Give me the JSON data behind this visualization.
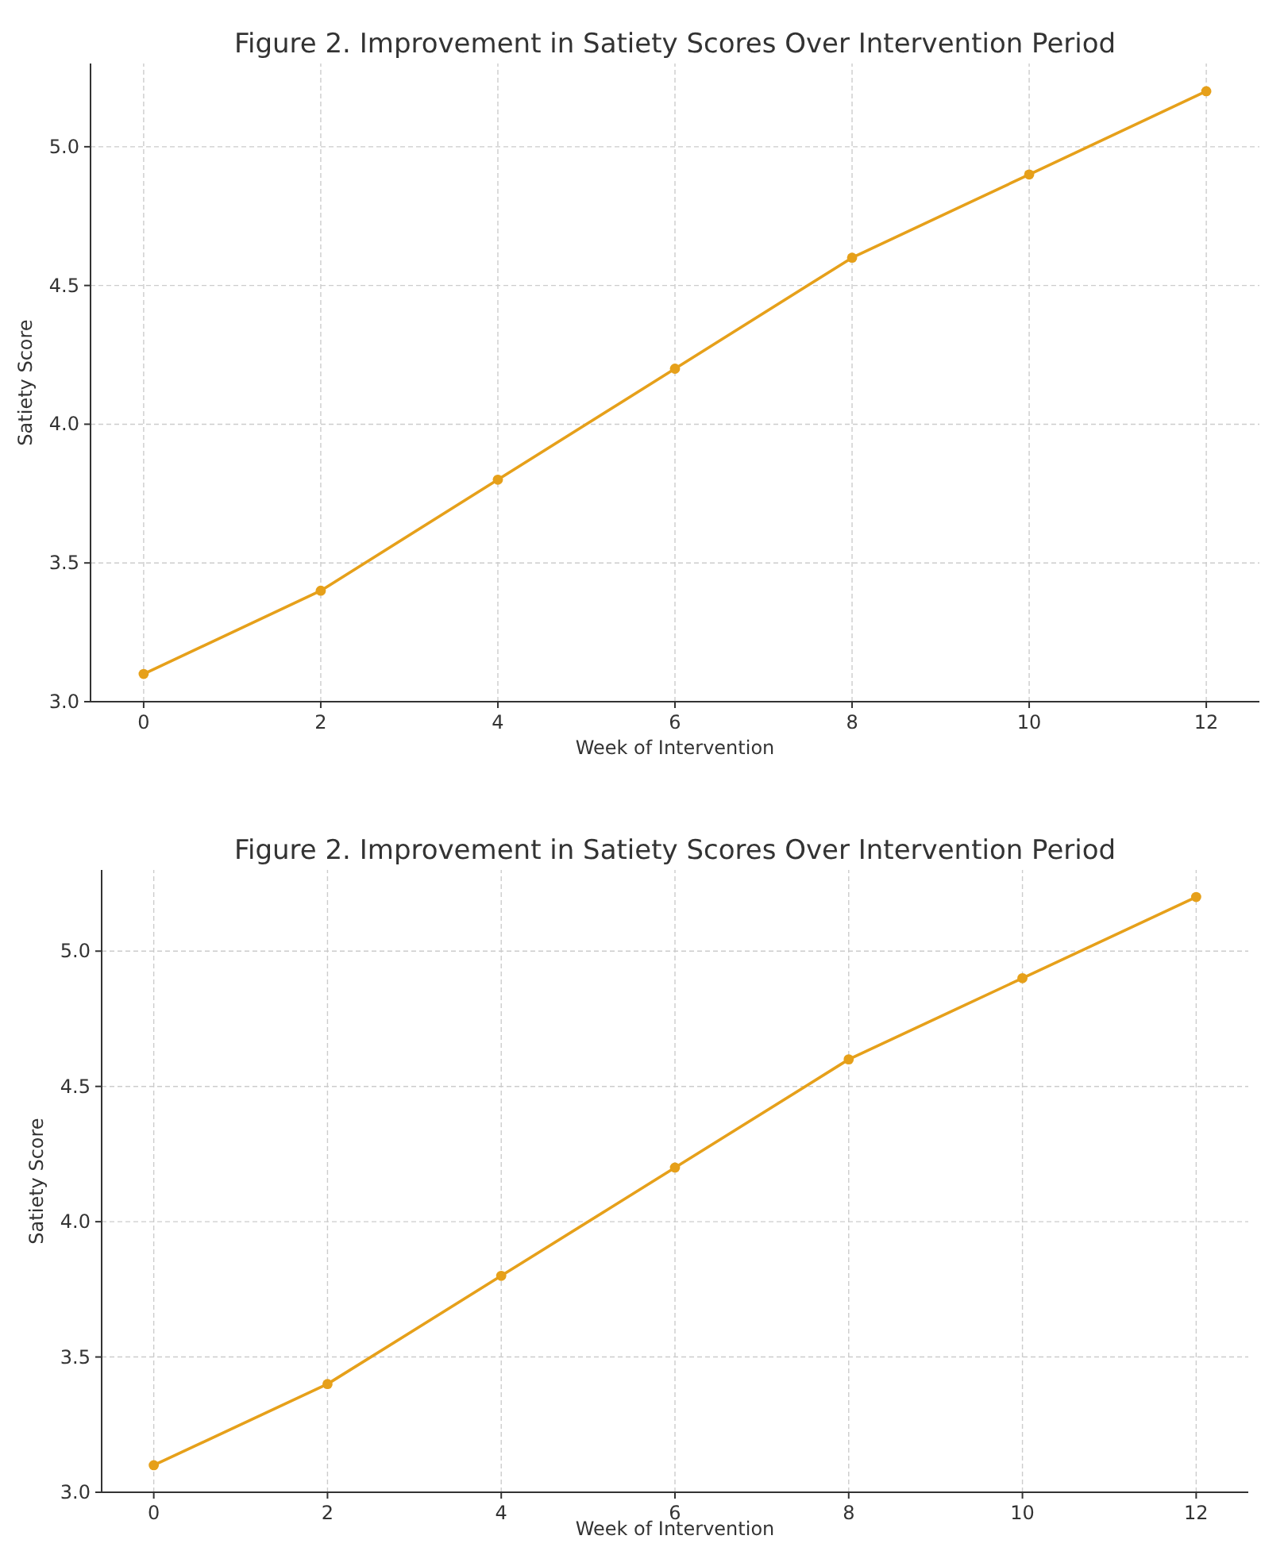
{
  "chart_data": [
    {
      "type": "line",
      "title": "Figure 2. Improvement in Satiety Scores Over Intervention Period",
      "xlabel": "Week of Intervention",
      "ylabel": "Satiety Score",
      "x": [
        0,
        2,
        4,
        6,
        8,
        10,
        12
      ],
      "series": [
        {
          "color": "#e6a01a",
          "values": [
            3.1,
            3.4,
            3.8,
            4.2,
            4.6,
            4.9,
            5.2
          ]
        }
      ],
      "xlim": [
        -0.6,
        12.6
      ],
      "xticks": [
        0,
        2,
        4,
        6,
        8,
        10,
        12
      ],
      "ylim": [
        3.0,
        5.3
      ],
      "yticks": [
        {
          "value": 3,
          "label": "3.0"
        },
        {
          "value": 3.5,
          "label": "3.5"
        },
        {
          "value": 4,
          "label": "4.0"
        },
        {
          "value": 4.5,
          "label": "4.5"
        },
        {
          "value": 5,
          "label": "5.0"
        }
      ],
      "grid": true,
      "marker": "circle",
      "line_style": "solid"
    },
    {
      "type": "line",
      "title": "Figure 2. Improvement in Satiety Scores Over Intervention Period",
      "xlabel": "Week of Intervention",
      "ylabel": "Satiety Score",
      "x": [
        0,
        2,
        4,
        6,
        8,
        10,
        12
      ],
      "series": [
        {
          "color": "#e6a01a",
          "values": [
            3.1,
            3.4,
            3.8,
            4.2,
            4.6,
            4.9,
            5.2
          ]
        }
      ],
      "xlim": [
        -0.6,
        12.6
      ],
      "xticks": [
        0,
        2,
        4,
        6,
        8,
        10,
        12
      ],
      "ylim": [
        3.0,
        5.3
      ],
      "yticks": [
        {
          "value": 3,
          "label": "3.0"
        },
        {
          "value": 3.5,
          "label": "3.5"
        },
        {
          "value": 4,
          "label": "4.0"
        },
        {
          "value": 4.5,
          "label": "4.5"
        },
        {
          "value": 5,
          "label": "5.0"
        }
      ],
      "grid": true,
      "marker": "circle",
      "line_style": "solid"
    }
  ]
}
